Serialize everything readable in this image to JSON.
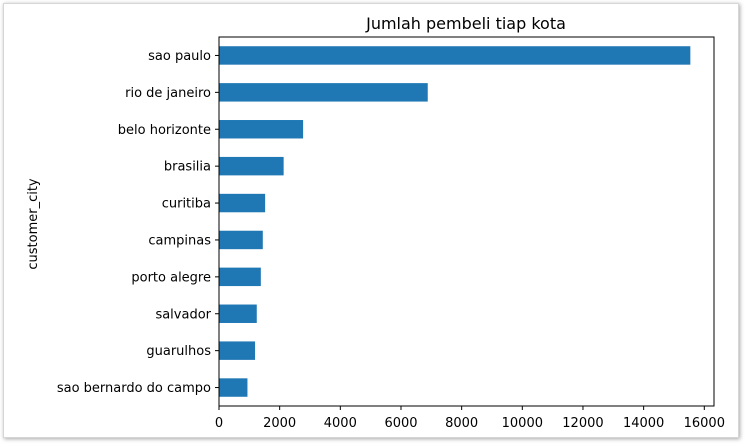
{
  "chart_data": {
    "type": "bar",
    "orientation": "horizontal",
    "title": "Jumlah pembeli tiap kota",
    "ylabel": "customer_city",
    "xlabel": "",
    "categories": [
      "sao paulo",
      "rio de janeiro",
      "belo horizonte",
      "brasilia",
      "curitiba",
      "campinas",
      "porto alegre",
      "salvador",
      "guarulhos",
      "sao bernardo do campo"
    ],
    "values": [
      15540,
      6882,
      2773,
      2131,
      1521,
      1444,
      1379,
      1245,
      1189,
      938
    ],
    "xlim": [
      0,
      16320
    ],
    "xticks": [
      0,
      2000,
      4000,
      6000,
      8000,
      10000,
      12000,
      14000,
      16000
    ],
    "grid": false,
    "bar_color": "#1f77b4"
  }
}
